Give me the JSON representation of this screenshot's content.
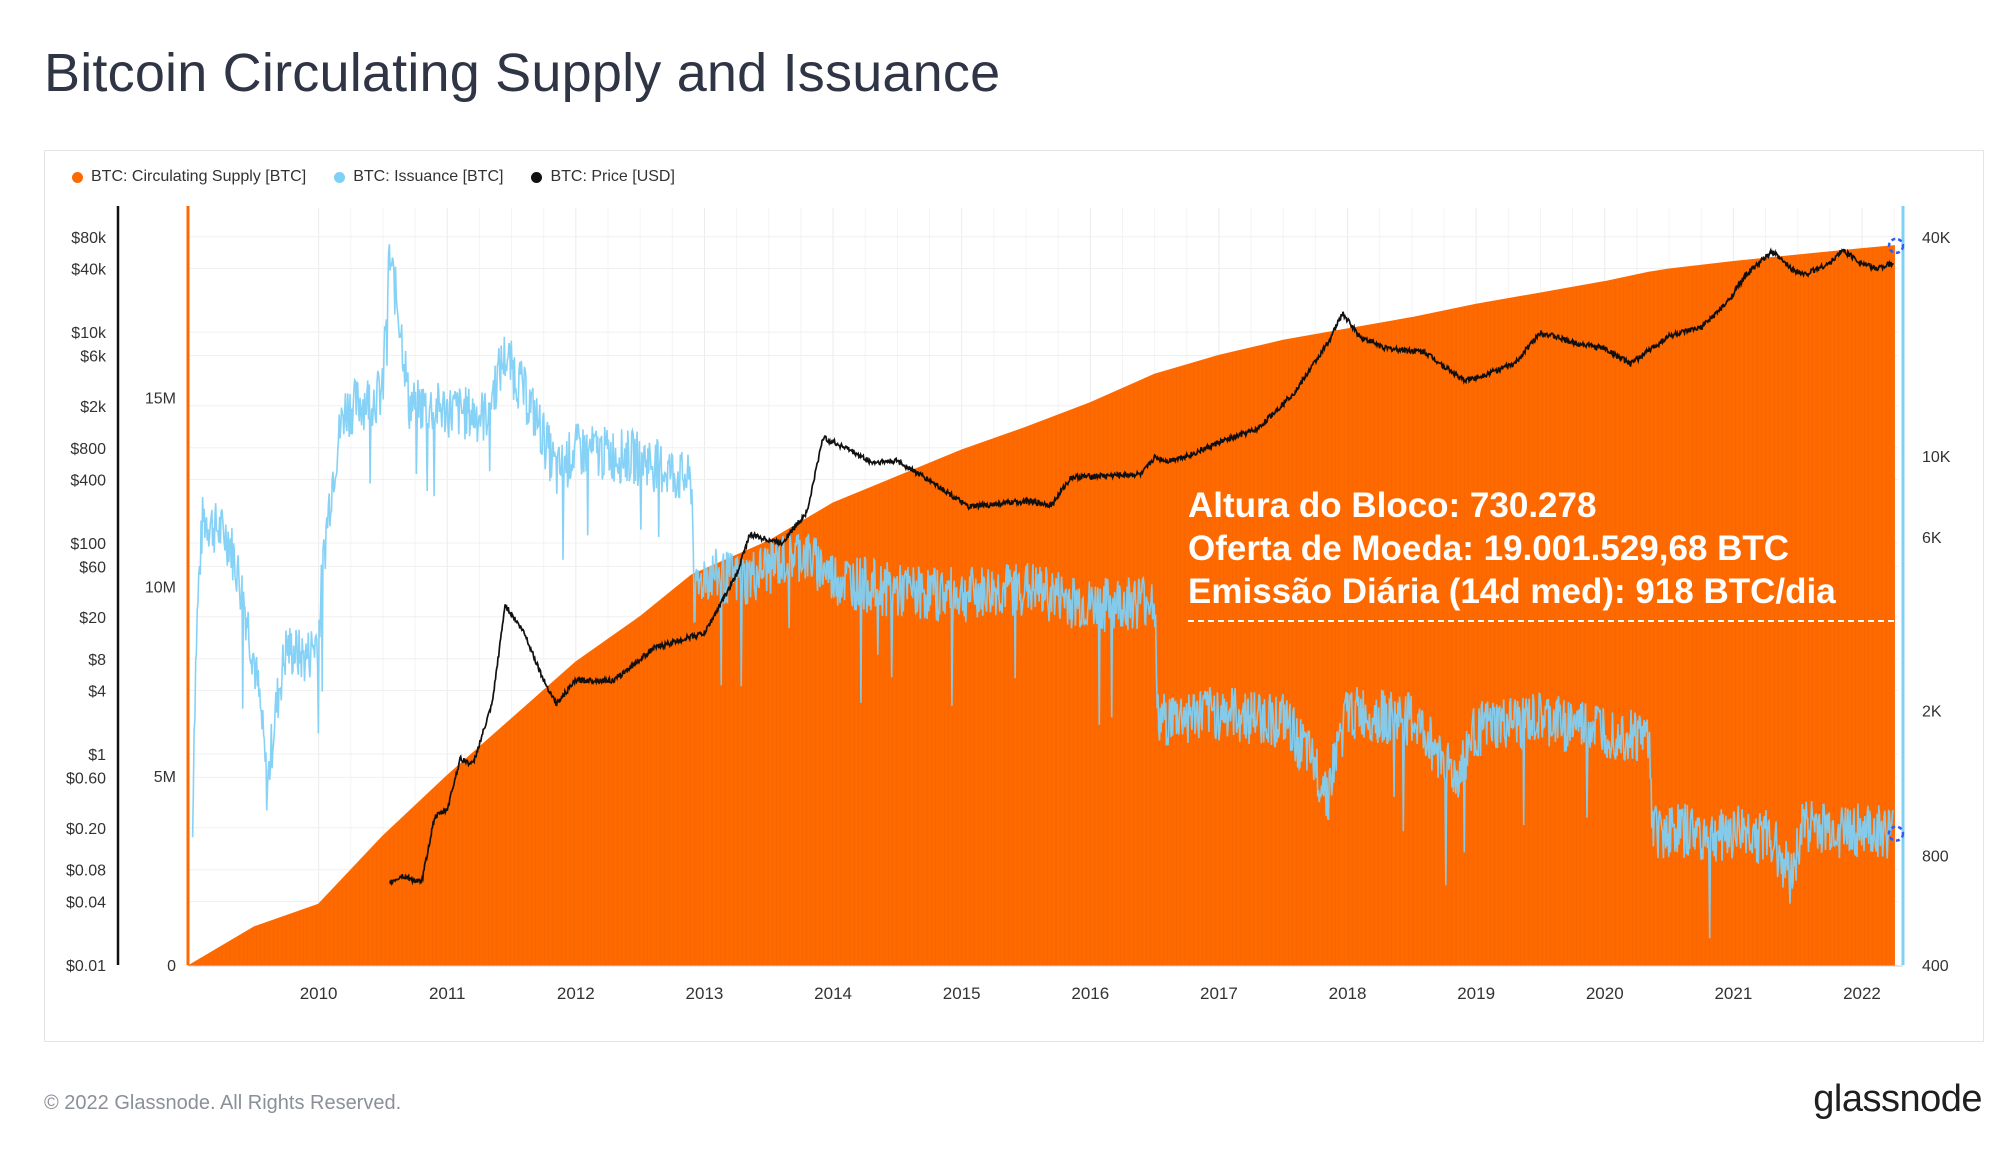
{
  "title": "Bitcoin Circulating Supply and Issuance",
  "legend": [
    {
      "label": "BTC: Circulating Supply [BTC]",
      "color": "#ff6a00"
    },
    {
      "label": "BTC: Issuance [BTC]",
      "color": "#7fd0f5"
    },
    {
      "label": "BTC: Price [USD]",
      "color": "#111111"
    }
  ],
  "annotation": {
    "line1": "Altura do Bloco: 730.278",
    "line2": "Oferta de Moeda: 19.001.529,68 BTC",
    "line3": "Emissão Diária (14d med): 918 BTC/dia"
  },
  "footer": "© 2022 Glassnode. All Rights Reserved.",
  "logo": "glassnode",
  "chart_data": {
    "type": "area",
    "title": "Bitcoin Circulating Supply and Issuance",
    "x_range": [
      2009.0,
      2022.28
    ],
    "x_ticks": [
      "2010",
      "2011",
      "2012",
      "2013",
      "2014",
      "2015",
      "2016",
      "2017",
      "2018",
      "2019",
      "2020",
      "2021",
      "2022"
    ],
    "axes": {
      "price": {
        "scale": "log",
        "ticks": [
          "$80k",
          "$40k",
          "$10k",
          "$6k",
          "$2k",
          "$800",
          "$400",
          "$100",
          "$60",
          "$20",
          "$8",
          "$4",
          "$1",
          "$0.60",
          "$0.20",
          "$0.08",
          "$0.04",
          "$0.01"
        ],
        "tick_values": [
          80000,
          40000,
          10000,
          6000,
          2000,
          800,
          400,
          100,
          60,
          20,
          8,
          4,
          1,
          0.6,
          0.2,
          0.08,
          0.04,
          0.01
        ]
      },
      "supply": {
        "scale": "linear",
        "ticks": [
          "0",
          "5M",
          "10M",
          "15M"
        ],
        "tick_values": [
          0,
          5000000,
          10000000,
          15000000
        ],
        "range": [
          0,
          20000000
        ]
      },
      "issuance": {
        "scale": "log",
        "ticks": [
          "40K",
          "10K",
          "6K",
          "2K",
          "800",
          "400"
        ],
        "tick_values": [
          40000,
          10000,
          6000,
          2000,
          800,
          400
        ],
        "range": [
          400,
          48000
        ]
      }
    },
    "series": [
      {
        "name": "BTC: Circulating Supply [BTC]",
        "color": "#ff6a00",
        "x": [
          2009.0,
          2009.5,
          2010.0,
          2010.5,
          2011.0,
          2011.5,
          2012.0,
          2012.5,
          2012.9,
          2013.5,
          2014.0,
          2014.5,
          2015.0,
          2015.5,
          2016.0,
          2016.5,
          2017.0,
          2017.5,
          2018.0,
          2018.5,
          2019.0,
          2019.5,
          2020.0,
          2020.35,
          2020.5,
          2021.0,
          2021.5,
          2022.0,
          2022.25
        ],
        "values": [
          0,
          1000000,
          1600000,
          3400000,
          5000000,
          6500000,
          8000000,
          9200000,
          10300000,
          11200000,
          12200000,
          12900000,
          13600000,
          14200000,
          14850000,
          15600000,
          16100000,
          16500000,
          16800000,
          17100000,
          17450000,
          17750000,
          18050000,
          18300000,
          18380000,
          18580000,
          18750000,
          18920000,
          19000000
        ]
      },
      {
        "name": "BTC: Issuance [BTC]",
        "color": "#7fd0f5",
        "x": [
          2009.02,
          2009.1,
          2009.3,
          2009.45,
          2009.6,
          2009.75,
          2009.9,
          2010.0,
          2010.2,
          2010.5,
          2010.55,
          2010.7,
          2011.0,
          2011.3,
          2011.45,
          2011.6,
          2011.85,
          2012.0,
          2012.5,
          2012.9,
          2012.92,
          2013.0,
          2013.3,
          2013.75,
          2014.0,
          2014.5,
          2015.0,
          2015.5,
          2016.0,
          2016.5,
          2016.52,
          2017.0,
          2017.5,
          2017.85,
          2018.0,
          2018.5,
          2018.85,
          2019.0,
          2019.5,
          2020.0,
          2020.35,
          2020.37,
          2020.6,
          2020.85,
          2021.0,
          2021.3,
          2021.45,
          2021.55,
          2021.7,
          2022.0,
          2022.25
        ],
        "values": [
          900,
          6800,
          6000,
          3500,
          1200,
          3000,
          2800,
          3200,
          13500,
          15000,
          35000,
          14000,
          13500,
          13000,
          19000,
          15000,
          9000,
          10500,
          10000,
          8500,
          4000,
          4800,
          4600,
          5500,
          4700,
          4300,
          4200,
          4400,
          3900,
          4100,
          1900,
          2000,
          1900,
          1200,
          2000,
          1900,
          1300,
          1800,
          1900,
          1800,
          1700,
          950,
          950,
          900,
          950,
          900,
          700,
          1000,
          950,
          950,
          918
        ]
      },
      {
        "name": "BTC: Price [USD]",
        "color": "#111111",
        "x": [
          2010.55,
          2010.65,
          2010.8,
          2010.9,
          2011.0,
          2011.1,
          2011.2,
          2011.35,
          2011.45,
          2011.6,
          2011.75,
          2011.85,
          2012.0,
          2012.3,
          2012.6,
          2012.9,
          2013.0,
          2013.25,
          2013.35,
          2013.6,
          2013.8,
          2013.92,
          2014.1,
          2014.3,
          2014.5,
          2014.8,
          2015.05,
          2015.5,
          2015.7,
          2015.85,
          2016.0,
          2016.4,
          2016.5,
          2016.6,
          2016.8,
          2017.0,
          2017.3,
          2017.6,
          2017.85,
          2017.96,
          2018.1,
          2018.3,
          2018.6,
          2018.9,
          2019.0,
          2019.3,
          2019.5,
          2019.75,
          2020.0,
          2020.2,
          2020.5,
          2020.75,
          2020.95,
          2021.1,
          2021.3,
          2021.45,
          2021.55,
          2021.75,
          2021.85,
          2022.0,
          2022.1,
          2022.25
        ],
        "values": [
          0.06,
          0.07,
          0.06,
          0.25,
          0.3,
          0.9,
          0.8,
          3,
          26,
          14,
          5,
          3,
          5,
          5,
          10,
          13,
          14,
          50,
          120,
          100,
          200,
          1000,
          800,
          580,
          600,
          360,
          220,
          250,
          230,
          420,
          430,
          450,
          650,
          600,
          700,
          900,
          1200,
          2800,
          8000,
          15000,
          9000,
          7000,
          6500,
          3500,
          3700,
          5000,
          10000,
          8000,
          7000,
          5000,
          9200,
          11000,
          19000,
          35000,
          58000,
          40000,
          35000,
          45000,
          60000,
          45000,
          40000,
          45000
        ]
      }
    ]
  }
}
